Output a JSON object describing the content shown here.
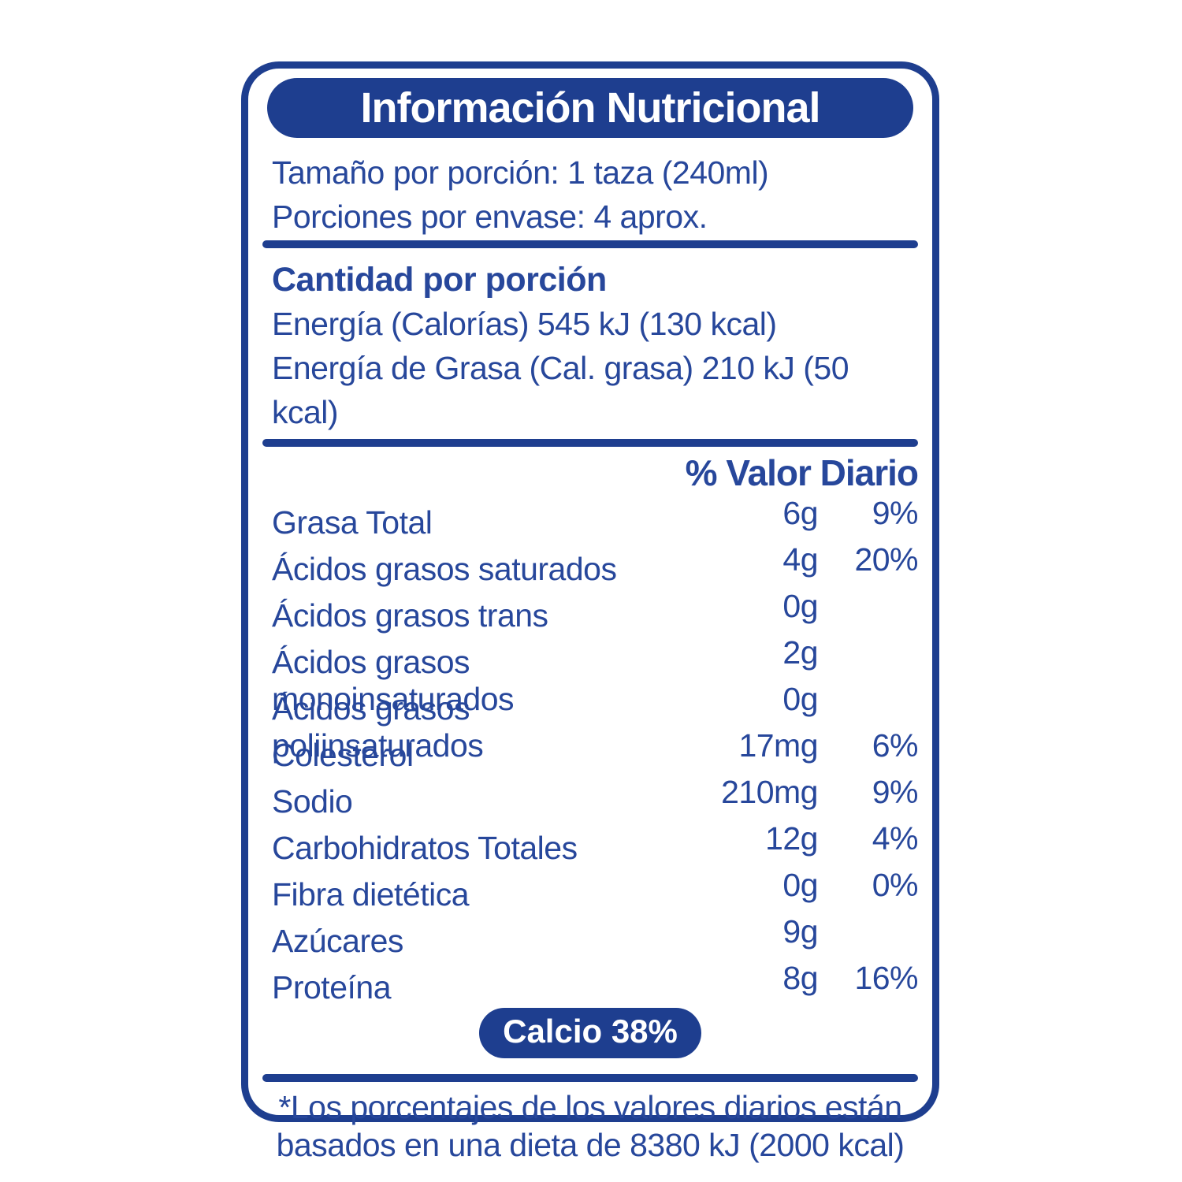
{
  "colors": {
    "blue": "#1e3e8f",
    "text-blue": "#27479b",
    "white": "#ffffff"
  },
  "label": {
    "title": "Información Nutricional",
    "serving": {
      "size_line": "Tamaño por porción: 1 taza (240ml)",
      "per_container_line": "Porciones por envase: 4 aprox."
    },
    "amount_section": {
      "heading": "Cantidad por porción",
      "energy_line": "Energía (Calorías) 545 kJ (130 kcal)",
      "energy_fat_line": "Energía de Grasa (Cal. grasa) 210 kJ (50 kcal)"
    },
    "daily_value_header": "% Valor Diario",
    "nutrients": [
      {
        "name": "Grasa Total",
        "amount": "6g",
        "dv": "9%"
      },
      {
        "name": "Ácidos grasos saturados",
        "amount": "4g",
        "dv": "20%"
      },
      {
        "name": "Ácidos grasos trans",
        "amount": "0g",
        "dv": ""
      },
      {
        "name": "Ácidos grasos monoinsaturados",
        "amount": "2g",
        "dv": ""
      },
      {
        "name": "Ácidos grasos poliinsaturados",
        "amount": "0g",
        "dv": ""
      },
      {
        "name": "Colesterol",
        "amount": "17mg",
        "dv": "6%"
      },
      {
        "name": "Sodio",
        "amount": "210mg",
        "dv": "9%"
      },
      {
        "name": "Carbohidratos Totales",
        "amount": "12g",
        "dv": "4%"
      },
      {
        "name": "Fibra dietética",
        "amount": "0g",
        "dv": "0%"
      },
      {
        "name": "Azúcares",
        "amount": "9g",
        "dv": ""
      },
      {
        "name": "Proteína",
        "amount": "8g",
        "dv": "16%"
      }
    ],
    "calcium_badge": "Calcio 38%",
    "footnote": {
      "line1": "*Los porcentajes de los valores diarios están",
      "line2": "basados en una dieta de 8380 kJ (2000 kcal)"
    }
  }
}
